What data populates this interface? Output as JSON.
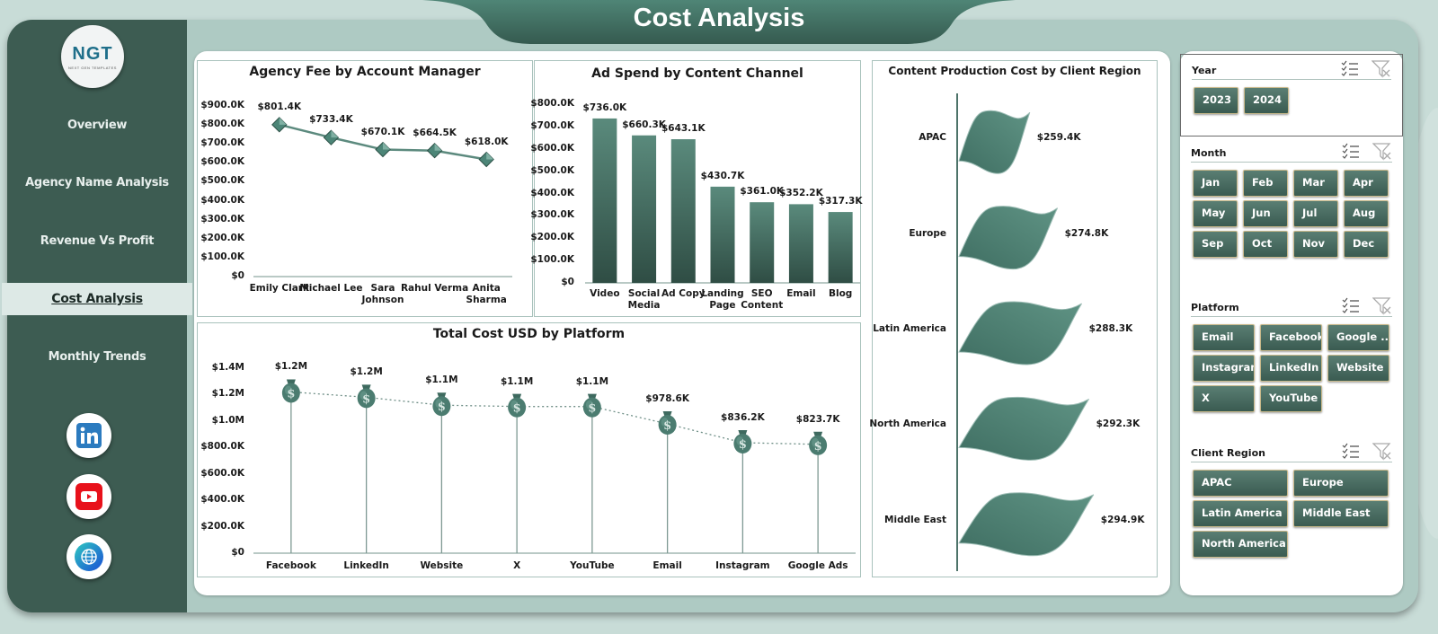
{
  "header": {
    "title": "Cost Analysis"
  },
  "sidebar": {
    "logo": {
      "text": "NGT",
      "subtext": "NEXT GEN TEMPLATES"
    },
    "items": [
      {
        "label": "Overview",
        "active": false
      },
      {
        "label": "Agency Name Analysis",
        "active": false
      },
      {
        "label": "Revenue Vs Profit",
        "active": false
      },
      {
        "label": "Cost Analysis",
        "active": true
      },
      {
        "label": "Monthly Trends",
        "active": false
      }
    ],
    "social": [
      {
        "icon": "linkedin-icon",
        "color": "#2c7bbf"
      },
      {
        "icon": "youtube-icon",
        "color": "#e8111b"
      },
      {
        "icon": "globe-icon",
        "color": "#1e6fd9"
      }
    ]
  },
  "colors": {
    "accent": "#3d5c52",
    "bar_top": "#5a8a7c",
    "bar_bottom": "#2f4d44",
    "background": "#aecac3",
    "chip_border": "#c9b98b"
  },
  "chart_data": [
    {
      "id": "agency_fee",
      "type": "line",
      "title": "Agency Fee by Account Manager",
      "categories": [
        "Emily Clark",
        "Michael Lee",
        "Sara Johnson",
        "Rahul Verma",
        "Anita Sharma"
      ],
      "values": [
        801.4,
        733.4,
        670.1,
        664.5,
        618.0
      ],
      "labels": [
        "$801.4K",
        "$733.4K",
        "$670.1K",
        "$664.5K",
        "$618.0K"
      ],
      "yticks": [
        "$0",
        "$100.0K",
        "$200.0K",
        "$300.0K",
        "$400.0K",
        "$500.0K",
        "$600.0K",
        "$700.0K",
        "$800.0K",
        "$900.0K"
      ],
      "ylim": [
        0,
        900
      ],
      "unit": "K USD",
      "xlabel": "",
      "ylabel": "",
      "grid": false,
      "legend": "none"
    },
    {
      "id": "ad_spend",
      "type": "bar",
      "title": "Ad Spend by Content Channel",
      "categories": [
        "Video",
        "Social Media",
        "Ad Copy",
        "Landing Page",
        "SEO Content",
        "Email",
        "Blog"
      ],
      "values": [
        736.0,
        660.3,
        643.1,
        430.7,
        361.0,
        352.2,
        317.3
      ],
      "labels": [
        "$736.0K",
        "$660.3K",
        "$643.1K",
        "$430.7K",
        "$361.0K",
        "$352.2K",
        "$317.3K"
      ],
      "yticks": [
        "$0",
        "$100.0K",
        "$200.0K",
        "$300.0K",
        "$400.0K",
        "$500.0K",
        "$600.0K",
        "$700.0K",
        "$800.0K"
      ],
      "ylim": [
        0,
        800
      ],
      "unit": "K USD",
      "xlabel": "",
      "ylabel": "",
      "grid": false,
      "legend": "none"
    },
    {
      "id": "total_cost_platform",
      "type": "line",
      "title": "Total Cost USD by Platform",
      "categories": [
        "Facebook",
        "LinkedIn",
        "Website",
        "X",
        "YouTube",
        "Email",
        "Instagram",
        "Google Ads"
      ],
      "values": [
        1220,
        1180,
        1120,
        1110,
        1110,
        978.6,
        836.2,
        823.7
      ],
      "labels": [
        "$1.2M",
        "$1.2M",
        "$1.1M",
        "$1.1M",
        "$1.1M",
        "$978.6K",
        "$836.2K",
        "$823.7K"
      ],
      "yticks": [
        "$0",
        "$200.0K",
        "$400.0K",
        "$600.0K",
        "$800.0K",
        "$1.0M",
        "$1.2M",
        "$1.4M"
      ],
      "ylim": [
        0,
        1400
      ],
      "unit": "K USD",
      "marker": "money-bag",
      "xlabel": "",
      "ylabel": "",
      "grid": false,
      "legend": "none"
    },
    {
      "id": "content_production_region",
      "type": "bar",
      "orientation": "horizontal",
      "title": "Content Production Cost by Client Region",
      "categories": [
        "APAC",
        "Europe",
        "Latin America",
        "North America",
        "Middle East"
      ],
      "values": [
        259.4,
        274.8,
        288.3,
        292.3,
        294.9
      ],
      "labels": [
        "$259.4K",
        "$274.8K",
        "$288.3K",
        "$292.3K",
        "$294.9K"
      ],
      "unit": "K USD",
      "marker": "flag",
      "xlabel": "",
      "ylabel": "",
      "grid": false,
      "legend": "none"
    }
  ],
  "slicers": [
    {
      "title": "Year",
      "options": [
        "2023",
        "2024"
      ]
    },
    {
      "title": "Month",
      "options": [
        "Jan",
        "Feb",
        "Mar",
        "Apr",
        "May",
        "Jun",
        "Jul",
        "Aug",
        "Sep",
        "Oct",
        "Nov",
        "Dec"
      ]
    },
    {
      "title": "Platform",
      "options": [
        "Email",
        "Facebook",
        "Google ...",
        "Instagram",
        "LinkedIn",
        "Website",
        "X",
        "YouTube"
      ]
    },
    {
      "title": "Client Region",
      "options": [
        "APAC",
        "Europe",
        "Latin America",
        "Middle East",
        "North America"
      ]
    }
  ]
}
